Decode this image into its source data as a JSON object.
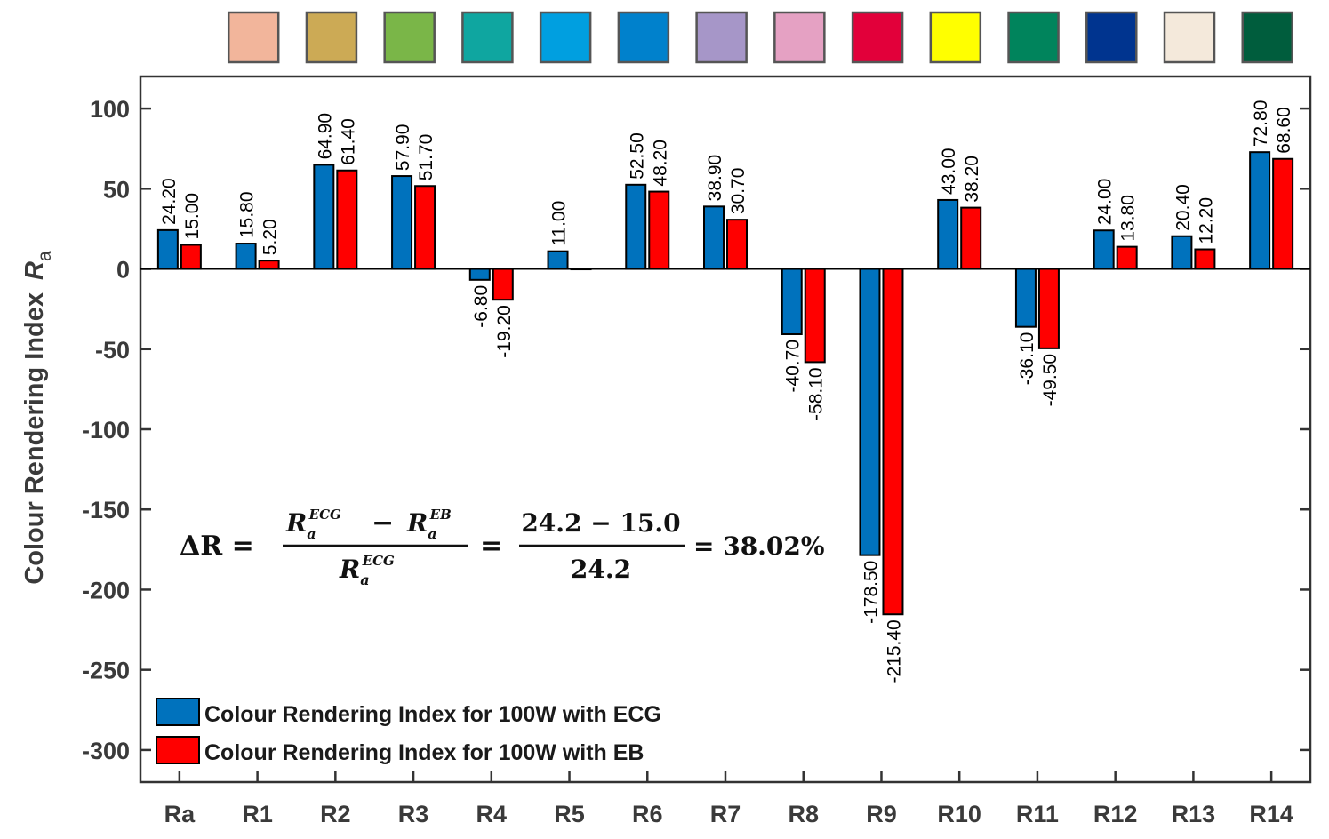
{
  "chart_data": {
    "type": "bar",
    "title": "",
    "xlabel": "",
    "ylabel": "Colour Rendering Index",
    "ylabel_symbol": "R",
    "ylabel_subscript": "a",
    "ylim": [
      -320,
      120
    ],
    "yticks": [
      100,
      50,
      0,
      -50,
      -100,
      -150,
      -200,
      -250,
      -300
    ],
    "ytick_labels": [
      "100",
      "50",
      "0",
      "-50",
      "-100",
      "-150",
      "-200",
      "-250",
      "-300"
    ],
    "categories": [
      "Ra",
      "R1",
      "R2",
      "R3",
      "R4",
      "R5",
      "R6",
      "R7",
      "R8",
      "R9",
      "R10",
      "R11",
      "R12",
      "R13",
      "R14"
    ],
    "series": [
      {
        "name": "Colour Rendering Index for 100W with ECG",
        "color": "#0072BD",
        "values": [
          24.2,
          15.8,
          64.9,
          57.9,
          -6.8,
          11.0,
          52.5,
          38.9,
          -40.7,
          -178.5,
          43.0,
          -36.1,
          24.0,
          20.4,
          72.8
        ],
        "labels": [
          "24.20",
          "15.80",
          "64.90",
          "57.90",
          "-6.80",
          "11.00",
          "52.50",
          "38.90",
          "-40.70",
          "-178.50",
          "43.00",
          "-36.10",
          "24.00",
          "20.40",
          "72.80"
        ]
      },
      {
        "name": "Colour Rendering Index for 100W with EB",
        "color": "#FF0000",
        "values": [
          15.0,
          5.2,
          61.4,
          51.7,
          -19.2,
          0.0,
          48.2,
          30.7,
          -58.1,
          -215.4,
          38.2,
          -49.5,
          13.8,
          12.2,
          68.6
        ],
        "labels": [
          "15.00",
          "5.20",
          "61.40",
          "51.70",
          "-19.20",
          "",
          "48.20",
          "30.70",
          "-58.10",
          "-215.40",
          "38.20",
          "-49.50",
          "13.80",
          "12.20",
          "68.60"
        ]
      }
    ],
    "swatch_colors": [
      "#F2B59B",
      "#CCAA55",
      "#7AB648",
      "#0FA6A0",
      "#009FE0",
      "#0081CC",
      "#A696C8",
      "#E5A1C3",
      "#E2003A",
      "#FFFF00",
      "#00845C",
      "#00348F",
      "#F4E9DB",
      "#005D3D"
    ],
    "legend_position": "bottom-left",
    "annotation": {
      "lhs": "ΔR =",
      "frac1_num_a": "R",
      "frac1_num_a_sub": "a",
      "frac1_num_a_sup": "ECG",
      "minus": "−",
      "frac1_num_b": "R",
      "frac1_num_b_sub": "a",
      "frac1_num_b_sup": "EB",
      "frac1_den": "R",
      "frac1_den_sub": "a",
      "frac1_den_sup": "ECG",
      "eq1": "=",
      "frac2_num": "24.2 − 15.0",
      "frac2_den": "24.2",
      "eq2": "= 38.02%"
    }
  }
}
